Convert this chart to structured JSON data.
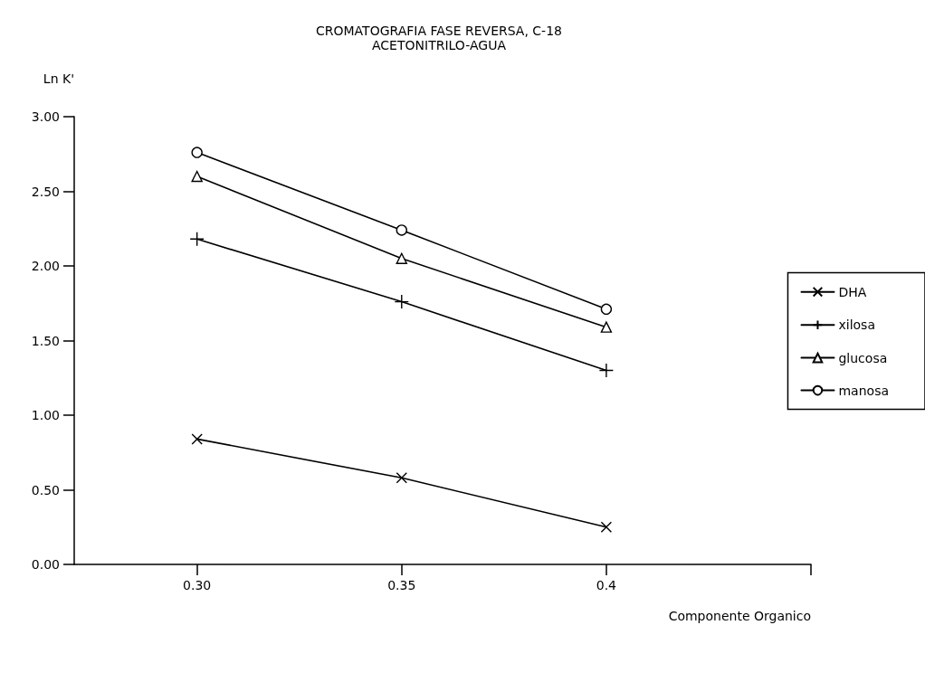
{
  "chart_data": {
    "type": "line",
    "title": "CROMATOGRAFIA FASE REVERSA, C-18",
    "subtitle": "ACETONITRILO-AGUA",
    "xlabel": "Componente Organico",
    "ylabel": "Ln K'",
    "x": [
      0.3,
      0.35,
      0.4
    ],
    "series": [
      {
        "name": "DHA",
        "color": "#000000",
        "marker": "cross",
        "values": [
          0.84,
          0.58,
          0.25
        ]
      },
      {
        "name": "xilosa",
        "color": "#000000",
        "marker": "plus",
        "values": [
          2.18,
          1.76,
          1.3
        ]
      },
      {
        "name": "glucosa",
        "color": "#000000",
        "marker": "triangle",
        "values": [
          2.6,
          2.05,
          1.59
        ]
      },
      {
        "name": "manosa",
        "color": "#000000",
        "marker": "circle",
        "values": [
          2.76,
          2.24,
          1.71
        ]
      }
    ],
    "xlim": [
      0.27,
      0.45
    ],
    "xticks": [
      {
        "value": 0.3,
        "label": "0.30"
      },
      {
        "value": 0.35,
        "label": "0.35"
      },
      {
        "value": 0.4,
        "label": "0.4"
      },
      {
        "value": 0.45,
        "label": null
      }
    ],
    "ylim": [
      0,
      3
    ],
    "yticks": [
      {
        "value": 0,
        "label": "0.00"
      },
      {
        "value": 0.5,
        "label": "0.50"
      },
      {
        "value": 1,
        "label": "1.00"
      },
      {
        "value": 1.5,
        "label": "1.50"
      },
      {
        "value": 2,
        "label": "2.00"
      },
      {
        "value": 2.5,
        "label": "2.50"
      },
      {
        "value": 3,
        "label": "3.00"
      }
    ],
    "grid": false,
    "legend": "right",
    "line_style": "solid"
  }
}
